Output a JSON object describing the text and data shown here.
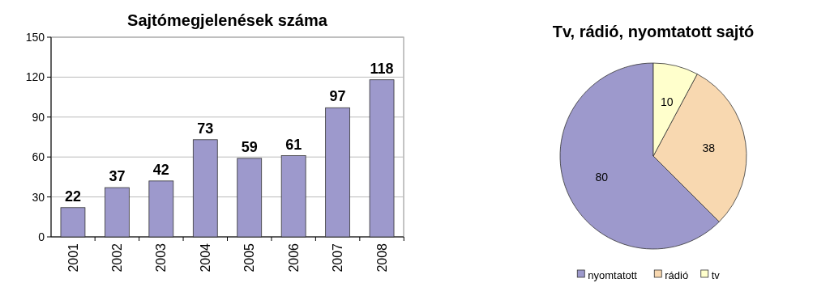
{
  "chart_data": [
    {
      "type": "bar",
      "title": "Sajtómegjelenések száma",
      "categories": [
        "2001",
        "2002",
        "2003",
        "2004",
        "2005",
        "2006",
        "2007",
        "2008"
      ],
      "values": [
        22,
        37,
        42,
        73,
        59,
        61,
        97,
        118
      ],
      "color": "#9d99cc",
      "ylim": [
        0,
        150
      ],
      "yticks": [
        0,
        30,
        60,
        90,
        120,
        150
      ],
      "grid": "y",
      "data_labels": true
    },
    {
      "type": "pie",
      "title": "Tv, rádió, nyomtatott sajtó",
      "categories": [
        "nyomtatott",
        "rádió",
        "tv"
      ],
      "values": [
        80,
        38,
        10
      ],
      "colors": [
        "#9d99cc",
        "#f8d8b0",
        "#ffffcc"
      ],
      "data_labels": true,
      "legend": "bottom"
    }
  ]
}
